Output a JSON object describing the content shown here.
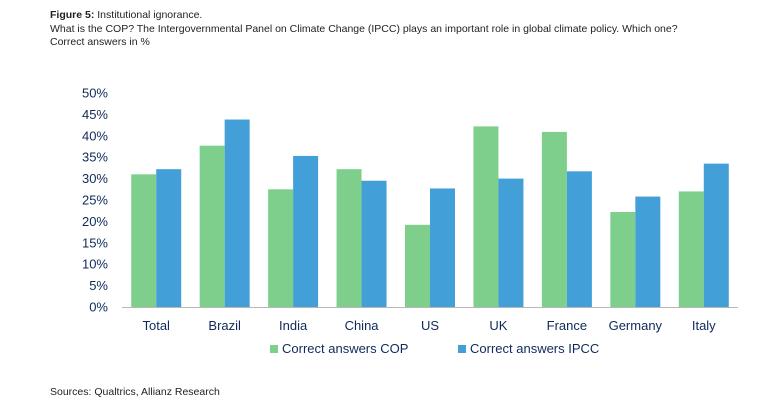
{
  "header": {
    "figure_label": "Figure 5:",
    "figure_title": "Institutional ignorance.",
    "question": "What is the COP? The Intergovernmental Panel on Climate Change (IPCC) plays an important role in global climate policy. Which one?",
    "unit_note": "Correct answers in %"
  },
  "footer": {
    "source": "Sources: Qualtrics, Allianz Research"
  },
  "colors": {
    "cop": "#7ecf8b",
    "ipcc": "#439fd8",
    "axis": "#0f2a5a"
  },
  "chart_data": {
    "type": "bar",
    "categories": [
      "Total",
      "Brazil",
      "India",
      "China",
      "US",
      "UK",
      "France",
      "Germany",
      "Italy"
    ],
    "series": [
      {
        "name": "Correct answers COP",
        "values": [
          31,
          37.7,
          27.5,
          32.2,
          19.2,
          42.2,
          40.9,
          22.2,
          27
        ]
      },
      {
        "name": "Correct answers IPCC",
        "values": [
          32.2,
          43.8,
          35.3,
          29.5,
          27.7,
          30,
          31.7,
          25.8,
          33.5
        ]
      }
    ],
    "yticks": [
      "0%",
      "5%",
      "10%",
      "15%",
      "20%",
      "25%",
      "30%",
      "35%",
      "40%",
      "45%",
      "50%"
    ],
    "ylim": [
      0,
      50
    ],
    "grid": false,
    "legend_position": "bottom"
  }
}
